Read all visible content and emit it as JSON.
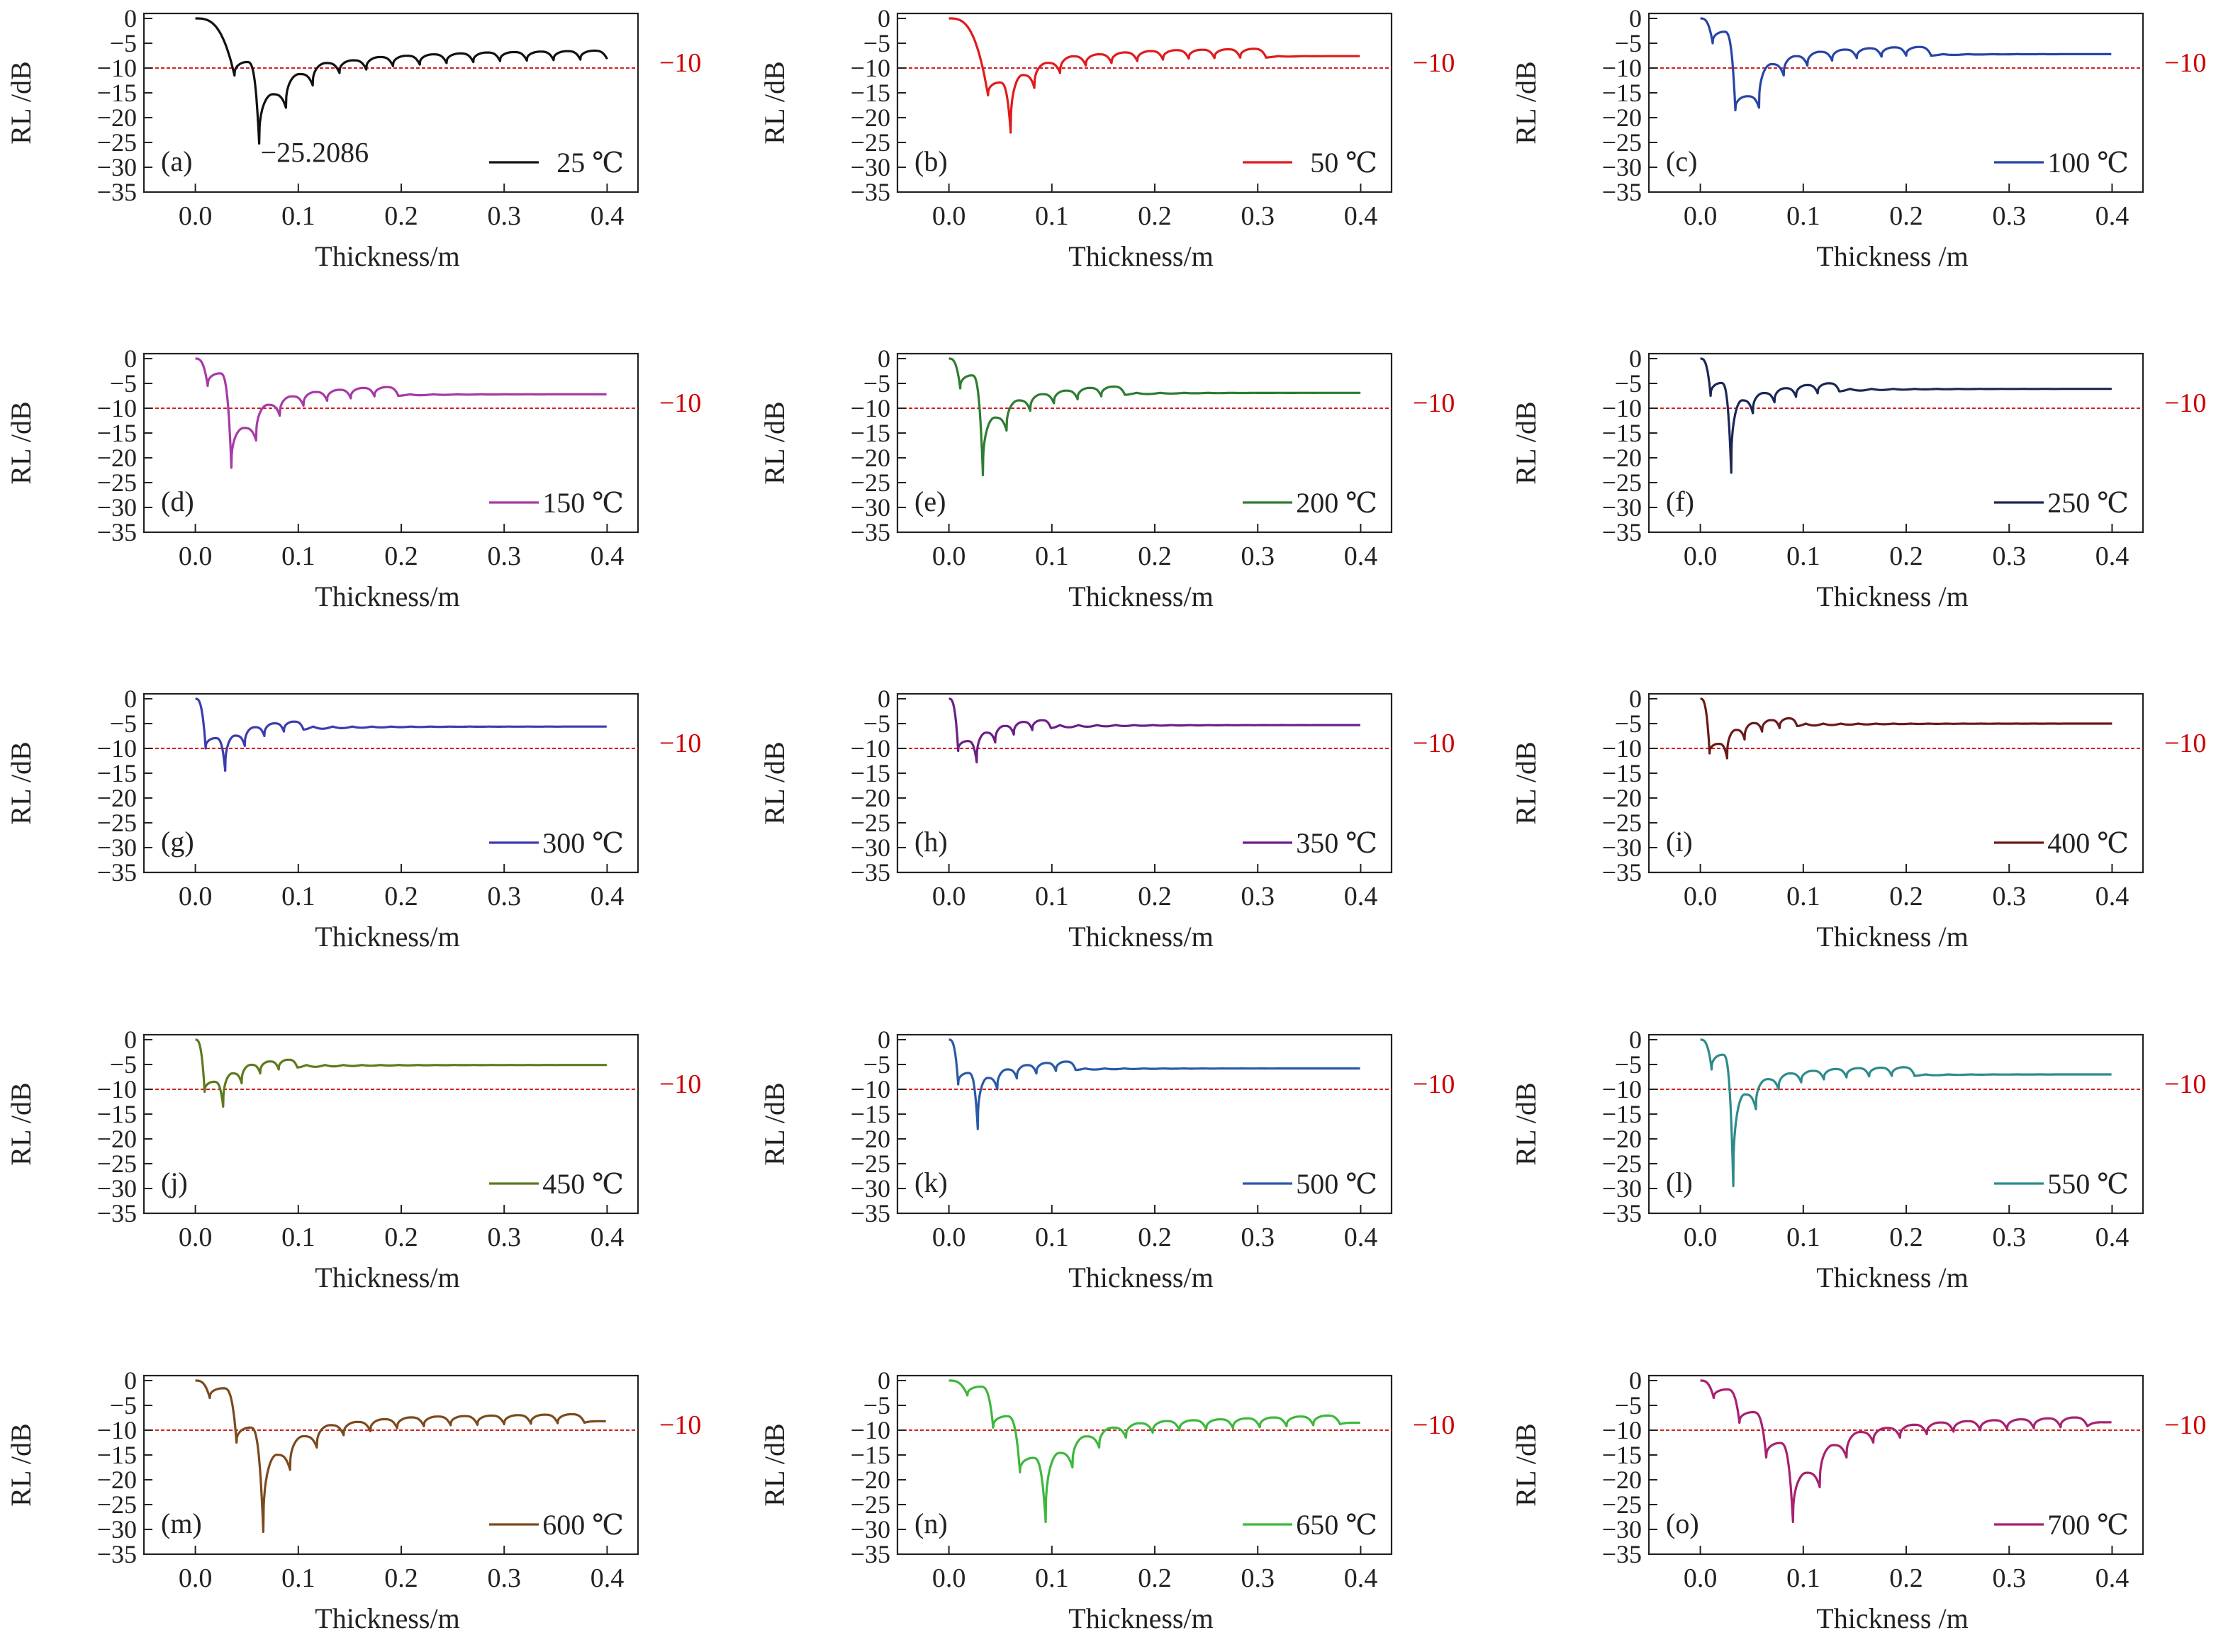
{
  "chart_data": [
    {
      "type": "line",
      "panel_label": "(a)",
      "legend": "25 ℃",
      "color": "#111111",
      "xlabel": "Thickness/m",
      "ylabel": "RL /dB",
      "xlim": [
        -0.05,
        0.43
      ],
      "ylim": [
        -35,
        1
      ],
      "xticks": [
        "0.0",
        "0.1",
        "0.2",
        "0.3",
        "0.4"
      ],
      "yticks": [
        "0",
        "−5",
        "−10",
        "−15",
        "−20",
        "−25",
        "−30",
        "−35"
      ],
      "reference_line": {
        "y": -10,
        "label": "−10",
        "color": "#cc0000"
      },
      "annotation": "−25.2086",
      "dip_thickness_m": [
        0.038,
        0.062,
        0.088,
        0.114,
        0.14,
        0.166,
        0.192,
        0.218,
        0.244,
        0.27,
        0.296,
        0.322,
        0.348,
        0.374,
        0.4
      ],
      "dip_rl_db": [
        -11.5,
        -25.2086,
        -18.0,
        -13.5,
        -11.0,
        -10.3,
        -9.6,
        -9.3,
        -9.0,
        -8.8,
        -8.6,
        -8.5,
        -8.4,
        -8.3,
        -8.2
      ],
      "rl_at_0_4_m": -7.8
    },
    {
      "type": "line",
      "panel_label": "(b)",
      "legend": "50 ℃",
      "color": "#e01b1b",
      "xlabel": "Thickness/m",
      "ylabel": "RL /dB",
      "xlim": [
        -0.05,
        0.43
      ],
      "ylim": [
        -35,
        1
      ],
      "xticks": [
        "0.0",
        "0.1",
        "0.2",
        "0.3",
        "0.4"
      ],
      "yticks": [
        "0",
        "−5",
        "−10",
        "−15",
        "−20",
        "−25",
        "−30",
        "−35"
      ],
      "reference_line": {
        "y": -10,
        "label": "−10",
        "color": "#cc0000"
      },
      "dip_thickness_m": [
        0.038,
        0.06,
        0.083,
        0.108,
        0.133,
        0.158,
        0.183,
        0.208,
        0.233,
        0.258,
        0.283,
        0.308
      ],
      "dip_rl_db": [
        -15.5,
        -23.0,
        -14.0,
        -11.0,
        -9.5,
        -9.0,
        -8.6,
        -8.3,
        -8.1,
        -8.0,
        -7.9,
        -7.8
      ],
      "rl_at_0_4_m": -7.6
    },
    {
      "type": "line",
      "panel_label": "(c)",
      "legend": "100 ℃",
      "color": "#2745a5",
      "xlabel": "Thickness /m",
      "ylabel": "RL /dB",
      "xlim": [
        -0.05,
        0.43
      ],
      "ylim": [
        -35,
        1
      ],
      "xticks": [
        "0.0",
        "0.1",
        "0.2",
        "0.3",
        "0.4"
      ],
      "yticks": [
        "0",
        "−5",
        "−10",
        "−15",
        "−20",
        "−25",
        "−30",
        "−35"
      ],
      "reference_line": {
        "y": -10,
        "label": "−10",
        "color": "#cc0000"
      },
      "dip_thickness_m": [
        0.012,
        0.034,
        0.057,
        0.081,
        0.104,
        0.128,
        0.152,
        0.176,
        0.2,
        0.224
      ],
      "dip_rl_db": [
        -5.0,
        -18.5,
        -18.0,
        -11.5,
        -9.5,
        -8.5,
        -8.0,
        -7.7,
        -7.5,
        -7.4
      ],
      "rl_at_0_4_m": -7.2
    },
    {
      "type": "line",
      "panel_label": "(d)",
      "legend": "150 ℃",
      "color": "#a63aa6",
      "xlabel": "Thickness/m",
      "ylabel": "RL /dB",
      "xlim": [
        -0.05,
        0.43
      ],
      "ylim": [
        -35,
        1
      ],
      "xticks": [
        "0.0",
        "0.1",
        "0.2",
        "0.3",
        "0.4"
      ],
      "yticks": [
        "0",
        "−5",
        "−10",
        "−15",
        "−20",
        "−25",
        "−30",
        "−35"
      ],
      "reference_line": {
        "y": -10,
        "label": "−10",
        "color": "#cc0000"
      },
      "dip_thickness_m": [
        0.012,
        0.035,
        0.059,
        0.082,
        0.105,
        0.128,
        0.151,
        0.174,
        0.197
      ],
      "dip_rl_db": [
        -5.5,
        -22.0,
        -16.5,
        -11.5,
        -9.5,
        -8.5,
        -8.0,
        -7.6,
        -7.4
      ],
      "rl_at_0_4_m": -7.2
    },
    {
      "type": "line",
      "panel_label": "(e)",
      "legend": "200 ℃",
      "color": "#2e7d32",
      "xlabel": "Thickness/m",
      "ylabel": "RL /dB",
      "xlim": [
        -0.05,
        0.43
      ],
      "ylim": [
        -35,
        1
      ],
      "xticks": [
        "0.0",
        "0.1",
        "0.2",
        "0.3",
        "0.4"
      ],
      "yticks": [
        "0",
        "−5",
        "−10",
        "−15",
        "−20",
        "−25",
        "−30",
        "−35"
      ],
      "reference_line": {
        "y": -10,
        "label": "−10",
        "color": "#cc0000"
      },
      "dip_thickness_m": [
        0.011,
        0.033,
        0.056,
        0.079,
        0.102,
        0.125,
        0.148,
        0.171
      ],
      "dip_rl_db": [
        -6.0,
        -23.5,
        -14.5,
        -10.5,
        -9.0,
        -8.2,
        -7.6,
        -7.3
      ],
      "rl_at_0_4_m": -6.9
    },
    {
      "type": "line",
      "panel_label": "(f)",
      "legend": "250 ℃",
      "color": "#1c2757",
      "xlabel": "Thickness /m",
      "ylabel": "RL /dB",
      "xlim": [
        -0.05,
        0.43
      ],
      "ylim": [
        -35,
        1
      ],
      "xticks": [
        "0.0",
        "0.1",
        "0.2",
        "0.3",
        "0.4"
      ],
      "yticks": [
        "0",
        "−5",
        "−10",
        "−15",
        "−20",
        "−25",
        "−30",
        "−35"
      ],
      "reference_line": {
        "y": -10,
        "label": "−10",
        "color": "#cc0000"
      },
      "dip_thickness_m": [
        0.01,
        0.03,
        0.051,
        0.072,
        0.093,
        0.114,
        0.135
      ],
      "dip_rl_db": [
        -7.5,
        -23.0,
        -11.0,
        -8.8,
        -7.7,
        -7.0,
        -6.6
      ],
      "rl_at_0_4_m": -6.1
    },
    {
      "type": "line",
      "panel_label": "(g)",
      "legend": "300 ℃",
      "color": "#3c3cb0",
      "xlabel": "Thickness/m",
      "ylabel": "RL /dB",
      "xlim": [
        -0.05,
        0.43
      ],
      "ylim": [
        -35,
        1
      ],
      "xticks": [
        "0.0",
        "0.1",
        "0.2",
        "0.3",
        "0.4"
      ],
      "yticks": [
        "0",
        "−5",
        "−10",
        "−15",
        "−20",
        "−25",
        "−30",
        "−35"
      ],
      "reference_line": {
        "y": -10,
        "label": "−10",
        "color": "#cc0000"
      },
      "dip_thickness_m": [
        0.01,
        0.029,
        0.048,
        0.067,
        0.086,
        0.105
      ],
      "dip_rl_db": [
        -10.0,
        -14.5,
        -9.5,
        -7.5,
        -6.6,
        -6.2
      ],
      "rl_at_0_4_m": -5.6
    },
    {
      "type": "line",
      "panel_label": "(h)",
      "legend": "350 ℃",
      "color": "#6b1f86",
      "xlabel": "Thickness/m",
      "ylabel": "RL /dB",
      "xlim": [
        -0.05,
        0.43
      ],
      "ylim": [
        -35,
        1
      ],
      "xticks": [
        "0.0",
        "0.1",
        "0.2",
        "0.3",
        "0.4"
      ],
      "yticks": [
        "0",
        "−5",
        "−10",
        "−15",
        "−20",
        "−25",
        "−30",
        "−35"
      ],
      "reference_line": {
        "y": -10,
        "label": "−10",
        "color": "#cc0000"
      },
      "dip_thickness_m": [
        0.009,
        0.027,
        0.045,
        0.063,
        0.081,
        0.099
      ],
      "dip_rl_db": [
        -10.5,
        -12.8,
        -8.8,
        -7.2,
        -6.3,
        -5.9
      ],
      "rl_at_0_4_m": -5.3
    },
    {
      "type": "line",
      "panel_label": "(i)",
      "legend": "400 ℃",
      "color": "#6b1a1a",
      "xlabel": "Thickness /m",
      "ylabel": "RL /dB",
      "xlim": [
        -0.05,
        0.43
      ],
      "ylim": [
        -35,
        1
      ],
      "xticks": [
        "0.0",
        "0.1",
        "0.2",
        "0.3",
        "0.4"
      ],
      "yticks": [
        "0",
        "−5",
        "−10",
        "−15",
        "−20",
        "−25",
        "−30",
        "−35"
      ],
      "reference_line": {
        "y": -10,
        "label": "−10",
        "color": "#cc0000"
      },
      "dip_thickness_m": [
        0.009,
        0.026,
        0.043,
        0.06,
        0.077,
        0.094
      ],
      "dip_rl_db": [
        -11.0,
        -12.0,
        -8.2,
        -6.6,
        -5.9,
        -5.5
      ],
      "rl_at_0_4_m": -5.0
    },
    {
      "type": "line",
      "panel_label": "(j)",
      "legend": "450 ℃",
      "color": "#5d7a1e",
      "xlabel": "Thickness/m",
      "ylabel": "RL /dB",
      "xlim": [
        -0.05,
        0.43
      ],
      "ylim": [
        -35,
        1
      ],
      "xticks": [
        "0.0",
        "0.1",
        "0.2",
        "0.3",
        "0.4"
      ],
      "yticks": [
        "0",
        "−5",
        "−10",
        "−15",
        "−20",
        "−25",
        "−30",
        "−35"
      ],
      "reference_line": {
        "y": -10,
        "label": "−10",
        "color": "#cc0000"
      },
      "dip_thickness_m": [
        0.009,
        0.027,
        0.045,
        0.063,
        0.081,
        0.099
      ],
      "dip_rl_db": [
        -10.5,
        -13.5,
        -8.8,
        -6.8,
        -6.0,
        -5.6
      ],
      "rl_at_0_4_m": -5.1
    },
    {
      "type": "line",
      "panel_label": "(k)",
      "legend": "500 ℃",
      "color": "#2a5aa8",
      "xlabel": "Thickness/m",
      "ylabel": "RL /dB",
      "xlim": [
        -0.05,
        0.43
      ],
      "ylim": [
        -35,
        1
      ],
      "xticks": [
        "0.0",
        "0.1",
        "0.2",
        "0.3",
        "0.4"
      ],
      "yticks": [
        "0",
        "−5",
        "−10",
        "−15",
        "−20",
        "−25",
        "−30",
        "−35"
      ],
      "reference_line": {
        "y": -10,
        "label": "−10",
        "color": "#cc0000"
      },
      "dip_thickness_m": [
        0.009,
        0.028,
        0.047,
        0.066,
        0.085,
        0.104,
        0.123
      ],
      "dip_rl_db": [
        -9.0,
        -18.0,
        -10.0,
        -7.8,
        -6.8,
        -6.3,
        -6.0
      ],
      "rl_at_0_4_m": -5.8
    },
    {
      "type": "line",
      "panel_label": "(l)",
      "legend": "550 ℃",
      "color": "#2e8b8b",
      "xlabel": "Thickness /m",
      "ylabel": "RL /dB",
      "xlim": [
        -0.05,
        0.43
      ],
      "ylim": [
        -35,
        1
      ],
      "xticks": [
        "0.0",
        "0.1",
        "0.2",
        "0.3",
        "0.4"
      ],
      "yticks": [
        "0",
        "−5",
        "−10",
        "−15",
        "−20",
        "−25",
        "−30",
        "−35"
      ],
      "reference_line": {
        "y": -10,
        "label": "−10",
        "color": "#cc0000"
      },
      "dip_thickness_m": [
        0.011,
        0.032,
        0.054,
        0.076,
        0.098,
        0.12,
        0.142,
        0.164,
        0.186,
        0.208
      ],
      "dip_rl_db": [
        -6.0,
        -29.5,
        -14.0,
        -10.0,
        -8.6,
        -8.0,
        -7.6,
        -7.4,
        -7.3,
        -7.2
      ],
      "rl_at_0_4_m": -7.0
    },
    {
      "type": "line",
      "panel_label": "(m)",
      "legend": "600 ℃",
      "color": "#7b4a1e",
      "xlabel": "Thickness/m",
      "ylabel": "RL /dB",
      "xlim": [
        -0.05,
        0.43
      ],
      "ylim": [
        -35,
        1
      ],
      "xticks": [
        "0.0",
        "0.1",
        "0.2",
        "0.3",
        "0.4"
      ],
      "yticks": [
        "0",
        "−5",
        "−10",
        "−15",
        "−20",
        "−25",
        "−30",
        "−35"
      ],
      "reference_line": {
        "y": -10,
        "label": "−10",
        "color": "#cc0000"
      },
      "dip_thickness_m": [
        0.014,
        0.04,
        0.066,
        0.092,
        0.118,
        0.144,
        0.17,
        0.196,
        0.222,
        0.248,
        0.274,
        0.3,
        0.326,
        0.352,
        0.378
      ],
      "dip_rl_db": [
        -3.5,
        -12.5,
        -30.5,
        -18.0,
        -13.5,
        -11.0,
        -10.2,
        -9.6,
        -9.2,
        -9.0,
        -8.9,
        -8.8,
        -8.7,
        -8.6,
        -8.5
      ],
      "rl_at_0_4_m": -8.2
    },
    {
      "type": "line",
      "panel_label": "(n)",
      "legend": "650 ℃",
      "color": "#3db83d",
      "xlabel": "Thickness/m",
      "ylabel": "RL /dB",
      "xlim": [
        -0.05,
        0.43
      ],
      "ylim": [
        -35,
        1
      ],
      "xticks": [
        "0.0",
        "0.1",
        "0.2",
        "0.3",
        "0.4"
      ],
      "yticks": [
        "0",
        "−5",
        "−10",
        "−15",
        "−20",
        "−25",
        "−30",
        "−35"
      ],
      "reference_line": {
        "y": -10,
        "label": "−10",
        "color": "#cc0000"
      },
      "dip_thickness_m": [
        0.018,
        0.043,
        0.069,
        0.094,
        0.12,
        0.146,
        0.172,
        0.198,
        0.224,
        0.25,
        0.276,
        0.302,
        0.328,
        0.354,
        0.38
      ],
      "dip_rl_db": [
        -3.0,
        -9.5,
        -18.5,
        -28.5,
        -17.5,
        -13.5,
        -11.5,
        -10.5,
        -10.0,
        -9.8,
        -9.6,
        -9.4,
        -9.2,
        -9.0,
        -8.8
      ],
      "rl_at_0_4_m": -8.5
    },
    {
      "type": "line",
      "panel_label": "(o)",
      "legend": "700 ℃",
      "color": "#a8206f",
      "xlabel": "Thickness /m",
      "ylabel": "RL /dB",
      "xlim": [
        -0.05,
        0.43
      ],
      "ylim": [
        -35,
        1
      ],
      "xticks": [
        "0.0",
        "0.1",
        "0.2",
        "0.3",
        "0.4"
      ],
      "yticks": [
        "0",
        "−5",
        "−10",
        "−15",
        "−20",
        "−25",
        "−30",
        "−35"
      ],
      "reference_line": {
        "y": -10,
        "label": "−10",
        "color": "#cc0000"
      },
      "dip_thickness_m": [
        0.013,
        0.038,
        0.064,
        0.09,
        0.116,
        0.142,
        0.168,
        0.194,
        0.22,
        0.246,
        0.272,
        0.298,
        0.324,
        0.35,
        0.376
      ],
      "dip_rl_db": [
        -3.5,
        -8.5,
        -15.5,
        -28.5,
        -21.5,
        -15.5,
        -12.5,
        -11.5,
        -10.8,
        -10.3,
        -10.0,
        -9.8,
        -9.6,
        -9.4,
        -9.2
      ],
      "rl_at_0_4_m": -8.4
    }
  ]
}
